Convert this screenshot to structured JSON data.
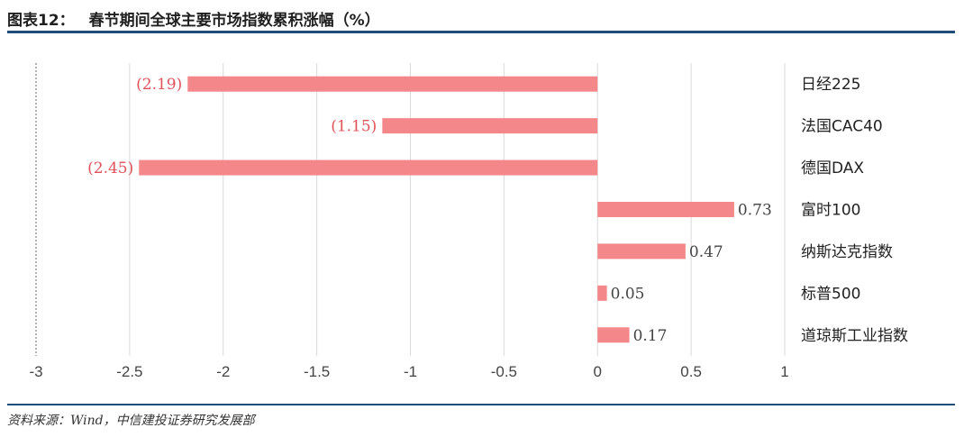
{
  "figure": {
    "label": "图表12：",
    "title": "春节期间全球主要市场指数累积涨幅（%）",
    "source": "资料来源：Wind，中信建投证券研究发展部"
  },
  "colors": {
    "bar": "#f4878a",
    "negative_label": "#e0525a",
    "positive_label": "#444444",
    "grid": "#d9d9d9",
    "rule": "#1f4e79"
  },
  "chart_data": {
    "type": "bar",
    "orientation": "horizontal",
    "categories": [
      "日经225",
      "法国CAC40",
      "德国DAX",
      "富时100",
      "纳斯达克指数",
      "标普500",
      "道琼斯工业指数"
    ],
    "values": [
      -2.19,
      -1.15,
      -2.45,
      0.73,
      0.47,
      0.05,
      0.17
    ],
    "data_labels": [
      "(2.19)",
      "(1.15)",
      "(2.45)",
      "0.73",
      "0.47",
      "0.05",
      "0.17"
    ],
    "xlim": [
      -3,
      1
    ],
    "xticks": [
      -3,
      -2.5,
      -2,
      -1.5,
      -1,
      -0.5,
      0,
      0.5,
      1
    ],
    "xtick_labels": [
      "-3",
      "-2.5",
      "-2",
      "-1.5",
      "-1",
      "-0.5",
      "0",
      "0.5",
      "1"
    ],
    "grid": true,
    "legend": "none"
  }
}
